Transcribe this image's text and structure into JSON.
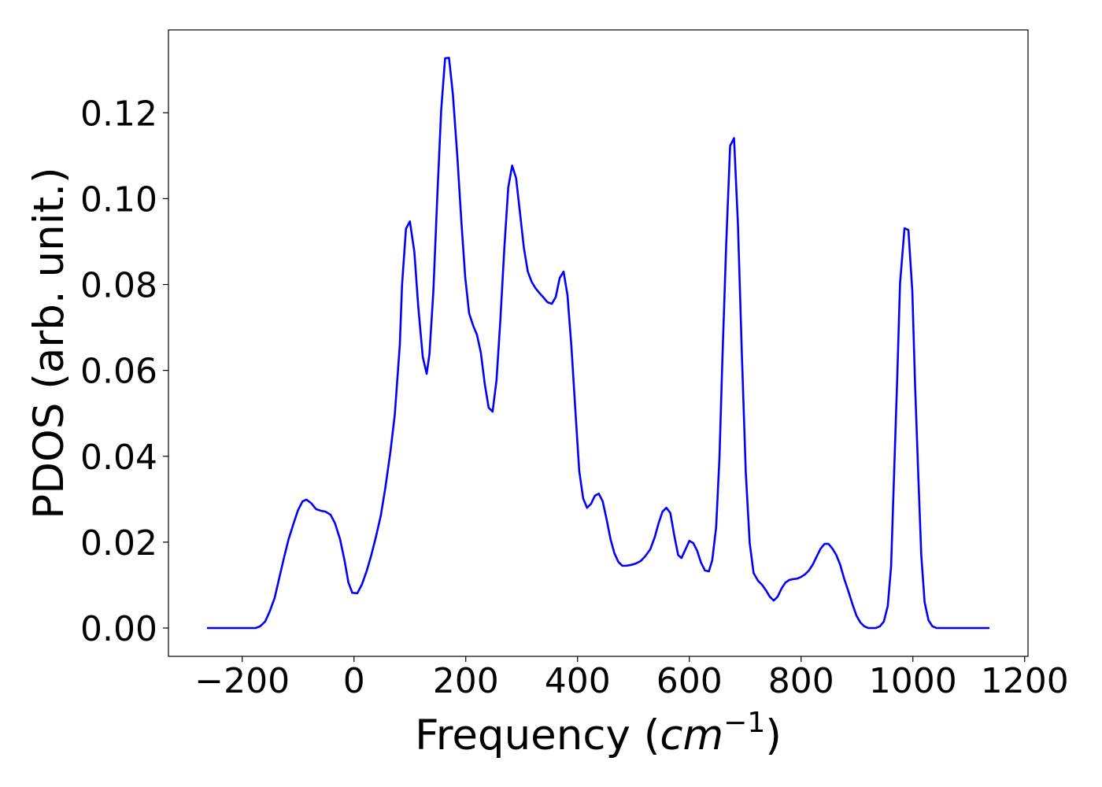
{
  "chart_data": {
    "type": "line",
    "xlabel": {
      "text": "Frequency (",
      "math": "cm",
      "sup": "−1",
      "close": ")"
    },
    "ylabel": "PDOS (arb. unit.)",
    "color": "#0000ff",
    "x": [
      -263,
      -176,
      -168,
      -159,
      -151,
      -142,
      -134,
      -125,
      -117,
      -108,
      -100,
      -92,
      -85,
      -76,
      -68,
      -59,
      -51,
      -42,
      -34,
      -25,
      -17,
      -10,
      -3,
      6,
      14,
      23,
      31,
      39,
      48,
      56,
      65,
      73,
      82,
      86,
      93,
      100,
      108,
      115,
      123,
      130,
      135,
      142,
      149,
      156,
      163,
      170,
      177,
      185,
      192,
      199,
      206,
      213,
      220,
      227,
      234,
      241,
      248,
      255,
      262,
      269,
      276,
      283,
      290,
      297,
      304,
      311,
      318,
      325,
      332,
      339,
      346,
      354,
      361,
      368,
      375,
      382,
      389,
      396,
      403,
      410,
      417,
      424,
      431,
      438,
      445,
      452,
      459,
      466,
      473,
      480,
      487,
      496,
      504,
      513,
      521,
      530,
      538,
      545,
      552,
      559,
      566,
      573,
      580,
      586,
      593,
      600,
      607,
      614,
      621,
      628,
      635,
      641,
      648,
      654,
      659,
      666,
      673,
      680,
      687,
      694,
      701,
      708,
      715,
      723,
      730,
      737,
      744,
      751,
      758,
      765,
      772,
      779,
      786,
      793,
      800,
      807,
      814,
      821,
      828,
      835,
      842,
      849,
      856,
      863,
      870,
      877,
      885,
      892,
      899,
      906,
      913,
      920,
      934,
      941,
      948,
      955,
      961,
      966,
      972,
      977,
      985,
      992,
      999,
      1004,
      1010,
      1015,
      1021,
      1028,
      1035,
      1042,
      1137
    ],
    "values": [
      0,
      0,
      0.0004,
      0.0015,
      0.0038,
      0.007,
      0.0115,
      0.0165,
      0.0207,
      0.0244,
      0.0275,
      0.0295,
      0.0299,
      0.029,
      0.0277,
      0.0273,
      0.0271,
      0.0264,
      0.0244,
      0.0207,
      0.0158,
      0.0106,
      0.0082,
      0.0081,
      0.0101,
      0.0134,
      0.017,
      0.0211,
      0.0262,
      0.0326,
      0.0409,
      0.0497,
      0.066,
      0.08,
      0.093,
      0.0947,
      0.0876,
      0.0748,
      0.0632,
      0.0592,
      0.0638,
      0.0784,
      0.1004,
      0.1206,
      0.1327,
      0.1328,
      0.1242,
      0.1096,
      0.0949,
      0.0817,
      0.0733,
      0.0705,
      0.0683,
      0.0641,
      0.0568,
      0.0513,
      0.0504,
      0.0577,
      0.072,
      0.0885,
      0.1026,
      0.1077,
      0.1048,
      0.0967,
      0.0885,
      0.083,
      0.0806,
      0.0791,
      0.078,
      0.077,
      0.0759,
      0.0755,
      0.0771,
      0.0815,
      0.083,
      0.0775,
      0.0656,
      0.0509,
      0.0366,
      0.0302,
      0.028,
      0.0289,
      0.0308,
      0.0313,
      0.0295,
      0.0253,
      0.0207,
      0.0174,
      0.0154,
      0.0145,
      0.0145,
      0.0147,
      0.015,
      0.0156,
      0.0167,
      0.0183,
      0.0211,
      0.0244,
      0.0271,
      0.028,
      0.0268,
      0.0216,
      0.017,
      0.0163,
      0.0183,
      0.0203,
      0.0198,
      0.018,
      0.0152,
      0.0134,
      0.0132,
      0.0158,
      0.0235,
      0.0399,
      0.0619,
      0.0894,
      0.1123,
      0.1141,
      0.094,
      0.0638,
      0.0363,
      0.0198,
      0.0128,
      0.011,
      0.0101,
      0.0088,
      0.0073,
      0.0064,
      0.0073,
      0.0092,
      0.0106,
      0.0112,
      0.0114,
      0.0115,
      0.0119,
      0.0125,
      0.0134,
      0.0148,
      0.0167,
      0.0185,
      0.0196,
      0.0196,
      0.0185,
      0.017,
      0.0147,
      0.0115,
      0.0084,
      0.0055,
      0.0029,
      0.0013,
      0.0004,
      0,
      0,
      0.0004,
      0.0015,
      0.0051,
      0.0143,
      0.0344,
      0.0583,
      0.0802,
      0.0931,
      0.0927,
      0.0784,
      0.0564,
      0.0344,
      0.017,
      0.006,
      0.0018,
      0.0004,
      0,
      0
    ],
    "xlim": [
      -332,
      1206
    ],
    "ylim": [
      -0.0066,
      0.1393
    ],
    "xticks": [
      {
        "value": -200,
        "label": "−200"
      },
      0,
      200,
      400,
      600,
      800,
      1000,
      1200
    ],
    "yticks": [
      {
        "value": 0,
        "label": "0.00"
      },
      {
        "value": 0.02,
        "label": "0.02"
      },
      {
        "value": 0.04,
        "label": "0.04"
      },
      {
        "value": 0.06,
        "label": "0.06"
      },
      {
        "value": 0.08,
        "label": "0.08"
      },
      {
        "value": 0.1,
        "label": "0.10"
      },
      {
        "value": 0.12,
        "label": "0.12"
      }
    ]
  }
}
